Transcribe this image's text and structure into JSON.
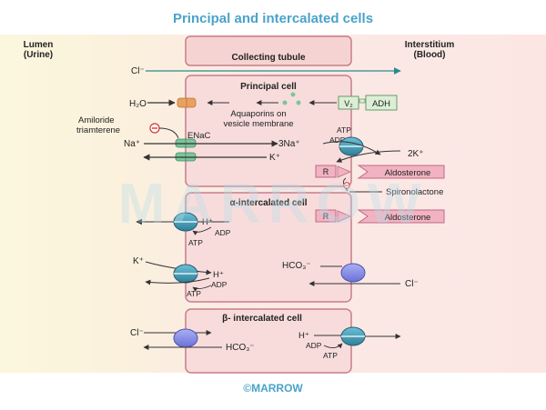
{
  "title": "Principal and intercalated cells",
  "lumen": {
    "line1": "Lumen",
    "line2": "(Urine)"
  },
  "interstitium": {
    "line1": "Interstitium",
    "line2": "(Blood)"
  },
  "tubule_label": "Collecting tubule",
  "cl_top": "Cl⁻",
  "principal": {
    "label": "Principal cell",
    "h2o": "H₂O",
    "aquaporins_line1": "Aquaporins on",
    "aquaporins_line2": "vesicle membrane",
    "v2": "V₂",
    "adh": "ADH",
    "amiloride_line1": "Amiloride",
    "amiloride_line2": "triamterene",
    "enac": "ENaC",
    "na": "Na⁺",
    "three_na": "3Na⁺",
    "atp": "ATP",
    "adp": "ADP",
    "two_k": "2K⁺",
    "k": "K⁺",
    "r": "R",
    "aldosterone": "Aldosterone",
    "spironolactone": "Spironolactone"
  },
  "alpha": {
    "label": "α-intercalated cell",
    "h_top": "H⁺",
    "adp_top": "ADP",
    "atp_top": "ATP",
    "k": "K⁺",
    "h_bottom": "H⁺",
    "adp_bottom": "ADP",
    "atp_bottom": "ATP",
    "hco3": "HCO₃⁻",
    "cl": "Cl⁻"
  },
  "beta": {
    "label": "β- intercalated cell",
    "cl": "Cl⁻",
    "hco3": "HCO₃⁻",
    "h": "H⁺",
    "adp": "ADP",
    "atp": "ATP"
  },
  "watermark": "MARROW",
  "footer": "©MARROW",
  "colors": {
    "accent": "#4aa3c9",
    "cell_border": "#c87d89",
    "cell_fill": "#f8dcdc",
    "pump": "#3e8fa6",
    "exchanger": "#7f86e0",
    "channel_orange": "#e8a25d",
    "channel_green": "#7cc59b",
    "receptor": "#f1b3c2",
    "adh_box": "#dcefd6"
  }
}
